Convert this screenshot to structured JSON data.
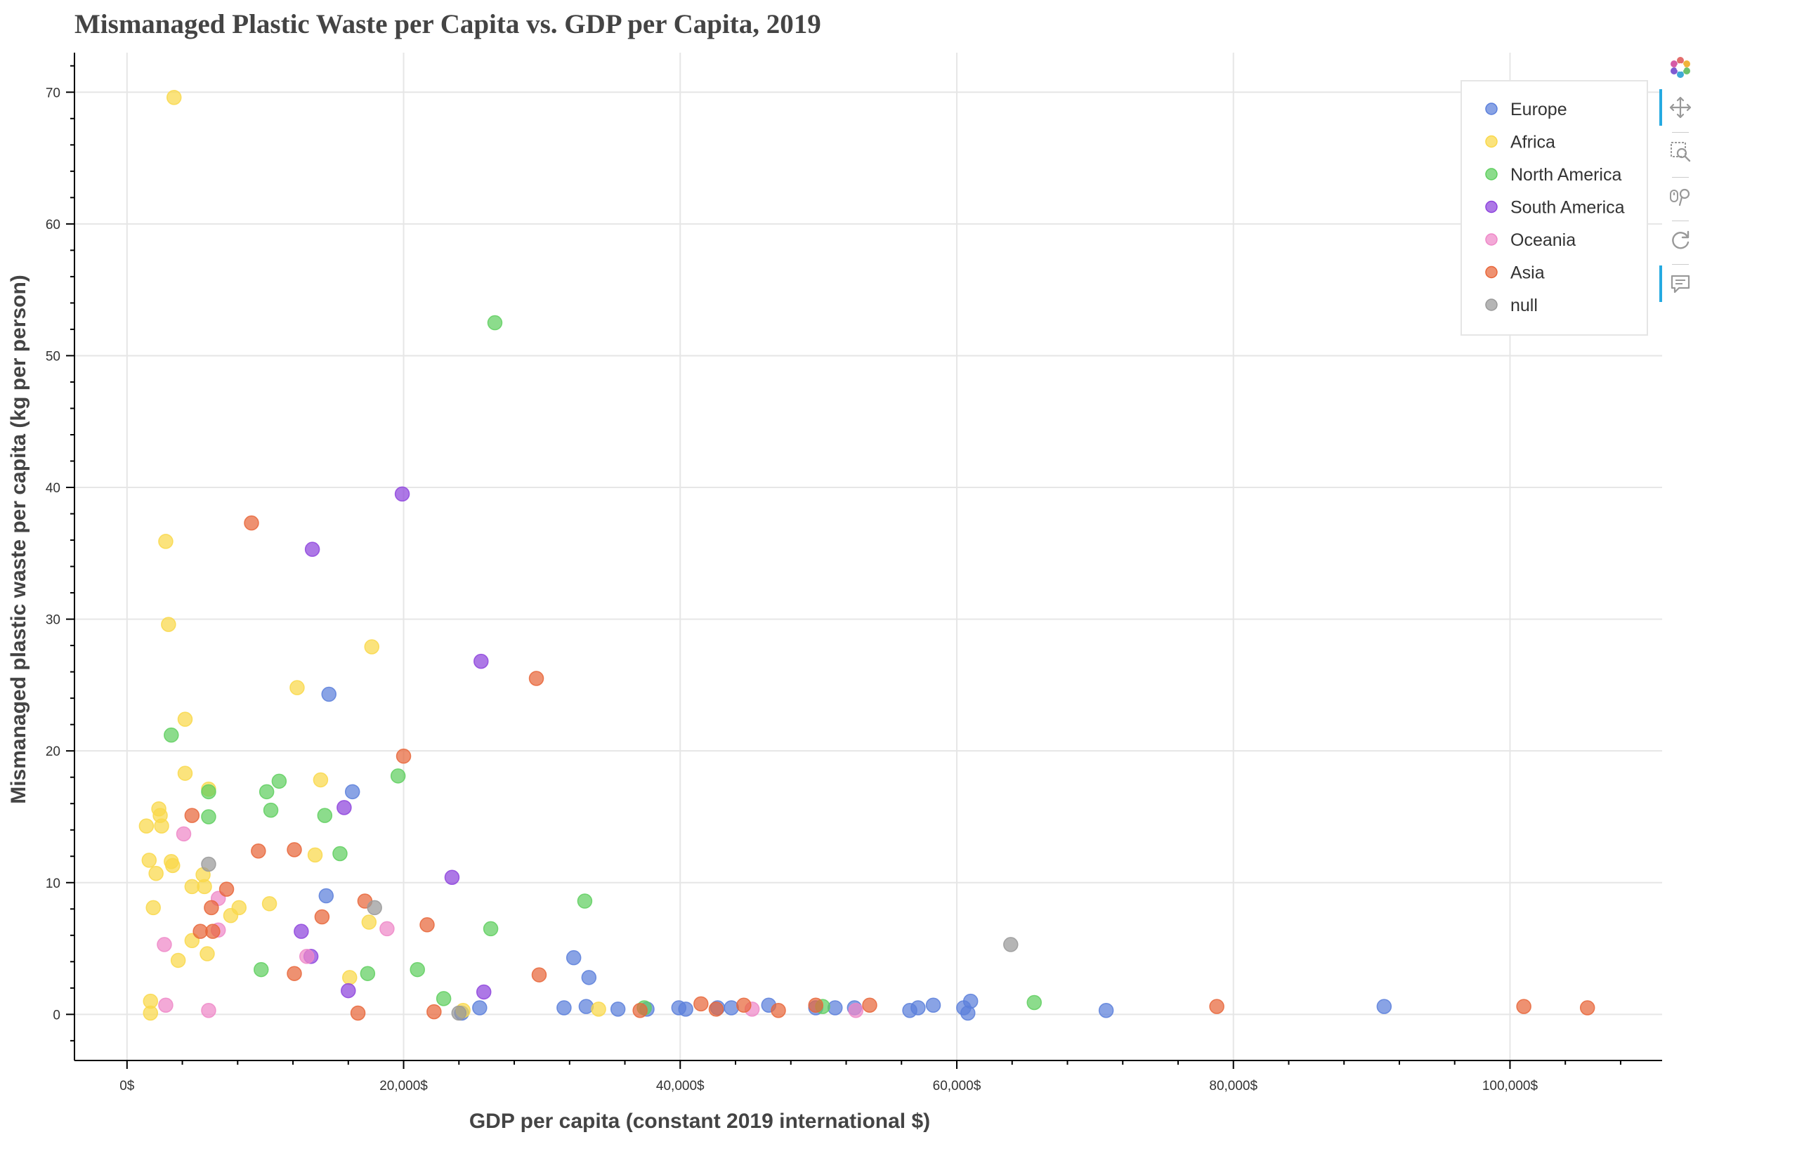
{
  "title": "Mismanaged Plastic Waste per Capita vs. GDP per Capita, 2019",
  "toolbar": {
    "logo": "bokeh-logo-icon",
    "tools": [
      {
        "name": "pan-tool",
        "icon": "pan-icon",
        "active": true
      },
      {
        "name": "box-zoom-tool",
        "icon": "box-zoom-icon",
        "active": false
      },
      {
        "name": "wheel-zoom-tool",
        "icon": "wheel-zoom-icon",
        "active": false
      },
      {
        "name": "reset-tool",
        "icon": "reset-icon",
        "active": false
      },
      {
        "name": "hover-tool",
        "icon": "hover-icon",
        "active": true
      }
    ]
  },
  "chart_data": {
    "type": "scatter",
    "title": "Mismanaged Plastic Waste per Capita vs. GDP per Capita, 2019",
    "xlabel": "GDP per capita (constant 2019 international $)",
    "ylabel": "Mismanaged plastic waste per capita (kg per person)",
    "xlim": [
      -3800,
      111000
    ],
    "ylim": [
      -3.5,
      73
    ],
    "x_ticks": [
      0,
      20000,
      40000,
      60000,
      80000,
      100000
    ],
    "x_tick_labels": [
      "0$",
      "20,000$",
      "40,000$",
      "60,000$",
      "80,000$",
      "100,000$"
    ],
    "y_ticks": [
      0,
      10,
      20,
      30,
      40,
      50,
      60,
      70
    ],
    "y_tick_labels": [
      "0",
      "10",
      "20",
      "30",
      "40",
      "50",
      "60",
      "70"
    ],
    "grid": true,
    "legend_position": "top-right",
    "series": [
      {
        "name": "Europe",
        "color": "#5b7fdb",
        "points": [
          [
            14600,
            24.3
          ],
          [
            16300,
            16.9
          ],
          [
            14400,
            9.0
          ],
          [
            32300,
            4.3
          ],
          [
            33400,
            2.8
          ],
          [
            25500,
            0.5
          ],
          [
            31600,
            0.5
          ],
          [
            33200,
            0.6
          ],
          [
            35500,
            0.4
          ],
          [
            37600,
            0.4
          ],
          [
            39900,
            0.5
          ],
          [
            40400,
            0.4
          ],
          [
            42700,
            0.5
          ],
          [
            43700,
            0.5
          ],
          [
            46400,
            0.7
          ],
          [
            49800,
            0.5
          ],
          [
            51200,
            0.5
          ],
          [
            52600,
            0.5
          ],
          [
            56600,
            0.3
          ],
          [
            57200,
            0.5
          ],
          [
            58300,
            0.7
          ],
          [
            60500,
            0.5
          ],
          [
            61000,
            1.0
          ],
          [
            60800,
            0.1
          ],
          [
            70800,
            0.3
          ],
          [
            90900,
            0.6
          ],
          [
            24200,
            0.1
          ]
        ]
      },
      {
        "name": "Africa",
        "color": "#f9d84a",
        "points": [
          [
            3400,
            69.6
          ],
          [
            2800,
            35.9
          ],
          [
            3000,
            29.6
          ],
          [
            17700,
            27.9
          ],
          [
            12300,
            24.8
          ],
          [
            4200,
            22.4
          ],
          [
            4200,
            18.3
          ],
          [
            5900,
            17.1
          ],
          [
            14000,
            17.8
          ],
          [
            2300,
            15.6
          ],
          [
            2400,
            15.1
          ],
          [
            1400,
            14.3
          ],
          [
            2500,
            14.3
          ],
          [
            1600,
            11.7
          ],
          [
            3200,
            11.6
          ],
          [
            3300,
            11.3
          ],
          [
            2100,
            10.7
          ],
          [
            5500,
            10.6
          ],
          [
            4700,
            9.7
          ],
          [
            5600,
            9.7
          ],
          [
            13600,
            12.1
          ],
          [
            10300,
            8.4
          ],
          [
            8100,
            8.1
          ],
          [
            7500,
            7.5
          ],
          [
            1900,
            8.1
          ],
          [
            17500,
            7.0
          ],
          [
            4700,
            5.6
          ],
          [
            5800,
            4.6
          ],
          [
            3700,
            4.1
          ],
          [
            16100,
            2.8
          ],
          [
            1700,
            1.0
          ],
          [
            1700,
            0.1
          ],
          [
            24300,
            0.3
          ],
          [
            34100,
            0.4
          ]
        ]
      },
      {
        "name": "North America",
        "color": "#5fcf5f",
        "points": [
          [
            26600,
            52.5
          ],
          [
            3200,
            21.2
          ],
          [
            5900,
            16.9
          ],
          [
            10100,
            16.9
          ],
          [
            11000,
            17.7
          ],
          [
            19600,
            18.1
          ],
          [
            5900,
            15.0
          ],
          [
            10400,
            15.5
          ],
          [
            14300,
            15.1
          ],
          [
            15400,
            12.2
          ],
          [
            33100,
            8.6
          ],
          [
            26300,
            6.5
          ],
          [
            9700,
            3.4
          ],
          [
            17400,
            3.1
          ],
          [
            21000,
            3.4
          ],
          [
            22900,
            1.2
          ],
          [
            37400,
            0.5
          ],
          [
            50300,
            0.6
          ],
          [
            65600,
            0.9
          ]
        ]
      },
      {
        "name": "South America",
        "color": "#8e44dd",
        "points": [
          [
            19900,
            39.5
          ],
          [
            13400,
            35.3
          ],
          [
            25600,
            26.8
          ],
          [
            15700,
            15.7
          ],
          [
            23500,
            10.4
          ],
          [
            12600,
            6.3
          ],
          [
            13300,
            4.4
          ],
          [
            16000,
            1.8
          ],
          [
            25800,
            1.7
          ]
        ]
      },
      {
        "name": "Oceania",
        "color": "#ee88c8",
        "points": [
          [
            4100,
            13.7
          ],
          [
            6600,
            8.8
          ],
          [
            6600,
            6.4
          ],
          [
            18800,
            6.5
          ],
          [
            2700,
            5.3
          ],
          [
            13000,
            4.4
          ],
          [
            2800,
            0.7
          ],
          [
            5900,
            0.3
          ],
          [
            45200,
            0.4
          ],
          [
            52700,
            0.3
          ]
        ]
      },
      {
        "name": "Asia",
        "color": "#e8663a",
        "points": [
          [
            9000,
            37.3
          ],
          [
            29600,
            25.5
          ],
          [
            20000,
            19.6
          ],
          [
            4700,
            15.1
          ],
          [
            9500,
            12.4
          ],
          [
            12100,
            12.5
          ],
          [
            7200,
            9.5
          ],
          [
            17200,
            8.6
          ],
          [
            6100,
            8.1
          ],
          [
            14100,
            7.4
          ],
          [
            5300,
            6.3
          ],
          [
            6200,
            6.3
          ],
          [
            21700,
            6.8
          ],
          [
            12100,
            3.1
          ],
          [
            29800,
            3.0
          ],
          [
            16700,
            0.1
          ],
          [
            22200,
            0.2
          ],
          [
            37100,
            0.3
          ],
          [
            41500,
            0.8
          ],
          [
            42600,
            0.4
          ],
          [
            44600,
            0.7
          ],
          [
            47100,
            0.3
          ],
          [
            49800,
            0.7
          ],
          [
            53700,
            0.7
          ],
          [
            78800,
            0.6
          ],
          [
            101000,
            0.6
          ],
          [
            105600,
            0.5
          ]
        ]
      },
      {
        "name": "null",
        "color": "#999999",
        "points": [
          [
            5900,
            11.4
          ],
          [
            17900,
            8.1
          ],
          [
            63900,
            5.3
          ],
          [
            24000,
            0.1
          ]
        ]
      }
    ]
  }
}
